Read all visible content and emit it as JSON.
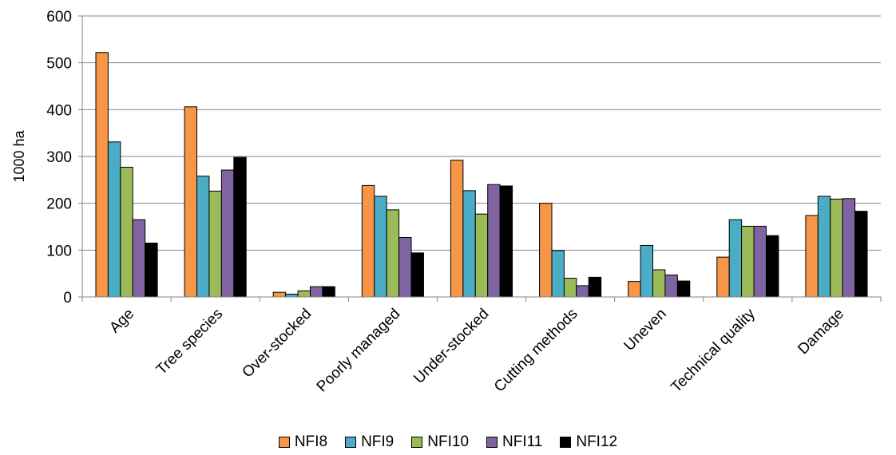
{
  "chart_data": {
    "type": "bar",
    "title": "",
    "xlabel": "",
    "ylabel": "1000 ha",
    "ylim": [
      0,
      600
    ],
    "yticks": [
      0,
      100,
      200,
      300,
      400,
      500,
      600
    ],
    "grid": true,
    "legend_position": "bottom",
    "categories": [
      "Age",
      "Tree species",
      "Over-stocked",
      "Poorly managed",
      "Under-stocked",
      "Cutting methods",
      "Uneven",
      "Technical quality",
      "Damage"
    ],
    "series": [
      {
        "name": "NFI8",
        "color": "#f79646",
        "values": [
          522,
          406,
          10,
          238,
          292,
          200,
          33,
          85,
          174
        ]
      },
      {
        "name": "NFI9",
        "color": "#4bacc6",
        "values": [
          331,
          258,
          6,
          215,
          227,
          99,
          110,
          165,
          215
        ]
      },
      {
        "name": "NFI10",
        "color": "#9bbb59",
        "values": [
          277,
          226,
          13,
          186,
          177,
          40,
          58,
          151,
          209
        ]
      },
      {
        "name": "NFI11",
        "color": "#8064a2",
        "values": [
          165,
          271,
          22,
          127,
          240,
          24,
          47,
          151,
          210
        ]
      },
      {
        "name": "NFI12",
        "color": "#000000",
        "values": [
          115,
          298,
          22,
          94,
          237,
          42,
          34,
          131,
          183
        ]
      }
    ]
  }
}
